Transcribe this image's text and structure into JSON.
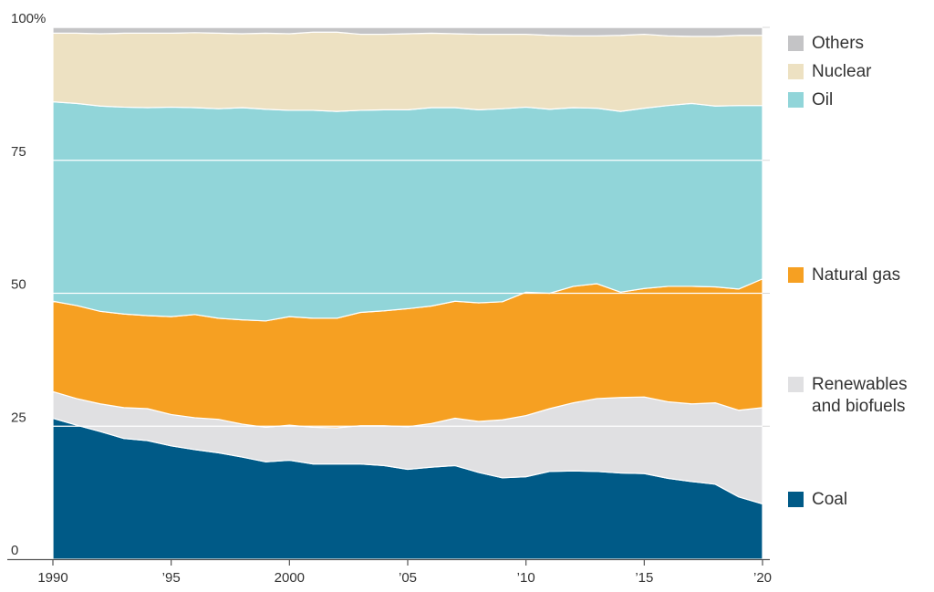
{
  "chart_data": {
    "type": "area",
    "stacked": true,
    "percent": true,
    "title": "",
    "xlabel": "",
    "ylabel": "",
    "x": [
      1990,
      1991,
      1992,
      1993,
      1994,
      1995,
      1996,
      1997,
      1998,
      1999,
      2000,
      2001,
      2002,
      2003,
      2004,
      2005,
      2006,
      2007,
      2008,
      2009,
      2010,
      2011,
      2012,
      2013,
      2014,
      2015,
      2016,
      2017,
      2018,
      2019,
      2020
    ],
    "xlim": [
      1990,
      2020
    ],
    "ylim": [
      0,
      100
    ],
    "y_ticks": [
      0,
      25,
      50,
      75,
      100
    ],
    "y_tick_labels": [
      "0",
      "25",
      "50",
      "75",
      "100%"
    ],
    "x_ticks": [
      1990,
      1995,
      2000,
      2005,
      2010,
      2015,
      2020
    ],
    "x_tick_labels": [
      "1990",
      "’95",
      "2000",
      "’05",
      "’10",
      "’15",
      "’20"
    ],
    "grid": true,
    "legend_position": "right",
    "series": [
      {
        "name": "Coal",
        "color": "#005a87",
        "values": [
          26.5,
          25.2,
          24.0,
          22.7,
          22.3,
          21.3,
          20.6,
          20.0,
          19.2,
          18.3,
          18.6,
          17.9,
          17.9,
          17.9,
          17.6,
          16.9,
          17.3,
          17.6,
          16.3,
          15.3,
          15.5,
          16.5,
          16.6,
          16.5,
          16.2,
          16.1,
          15.2,
          14.6,
          14.1,
          11.7,
          10.4
        ]
      },
      {
        "name": "Renewables and biofuels",
        "color": "#e0e0e2",
        "values": [
          5.0,
          5.0,
          5.2,
          5.8,
          6.0,
          5.9,
          6.0,
          6.3,
          6.2,
          6.5,
          6.6,
          6.9,
          6.8,
          7.2,
          7.5,
          8.0,
          8.2,
          8.9,
          9.6,
          10.9,
          11.5,
          11.8,
          12.8,
          13.7,
          14.2,
          14.4,
          14.4,
          14.6,
          15.3,
          16.3,
          18.1
        ]
      },
      {
        "name": "Natural gas",
        "color": "#f6a022",
        "values": [
          17.0,
          17.5,
          17.4,
          17.6,
          17.5,
          18.4,
          19.4,
          19.0,
          19.6,
          20.0,
          20.4,
          20.5,
          20.6,
          21.3,
          21.6,
          22.2,
          22.1,
          22.0,
          22.3,
          22.2,
          23.2,
          21.7,
          21.9,
          21.6,
          19.8,
          20.4,
          21.7,
          22.1,
          21.8,
          22.8,
          24.2
        ]
      },
      {
        "name": "Oil",
        "color": "#91d5d9",
        "values": [
          37.5,
          38.0,
          38.6,
          38.9,
          39.1,
          39.4,
          38.9,
          39.4,
          39.9,
          39.8,
          38.8,
          39.1,
          38.9,
          38.0,
          37.8,
          37.4,
          37.3,
          36.4,
          36.3,
          36.3,
          34.8,
          34.6,
          33.6,
          33.0,
          34.0,
          33.9,
          34.0,
          34.4,
          34.0,
          34.5,
          32.6
        ]
      },
      {
        "name": "Nuclear",
        "color": "#ede1c2",
        "values": [
          12.9,
          13.2,
          13.6,
          13.9,
          14.0,
          13.9,
          14.1,
          14.2,
          13.9,
          14.3,
          14.4,
          14.7,
          14.9,
          14.3,
          14.2,
          14.3,
          14.0,
          13.9,
          14.2,
          14.0,
          13.7,
          13.9,
          13.5,
          13.6,
          14.3,
          13.9,
          13.1,
          12.6,
          13.1,
          13.2,
          13.2
        ]
      },
      {
        "name": "Others",
        "color": "#c4c4c6",
        "values": [
          1.1,
          1.1,
          1.2,
          1.1,
          1.1,
          1.1,
          1.0,
          1.1,
          1.2,
          1.1,
          1.2,
          0.9,
          0.9,
          1.3,
          1.3,
          1.2,
          1.1,
          1.2,
          1.3,
          1.3,
          1.3,
          1.5,
          1.6,
          1.6,
          1.5,
          1.3,
          1.6,
          1.7,
          1.7,
          1.5,
          1.5
        ]
      }
    ]
  },
  "legend": [
    {
      "series": "Others",
      "lines": [
        "Others"
      ],
      "color": "#c4c4c6"
    },
    {
      "series": "Nuclear",
      "lines": [
        "Nuclear"
      ],
      "color": "#ede1c2"
    },
    {
      "series": "Oil",
      "lines": [
        "Oil"
      ],
      "color": "#91d5d9"
    },
    {
      "series": "Natural gas",
      "lines": [
        "Natural gas"
      ],
      "color": "#f6a022"
    },
    {
      "series": "Renewables and biofuels",
      "lines": [
        "Renewables",
        "and biofuels"
      ],
      "color": "#e0e0e2"
    },
    {
      "series": "Coal",
      "lines": [
        "Coal"
      ],
      "color": "#005a87"
    }
  ]
}
